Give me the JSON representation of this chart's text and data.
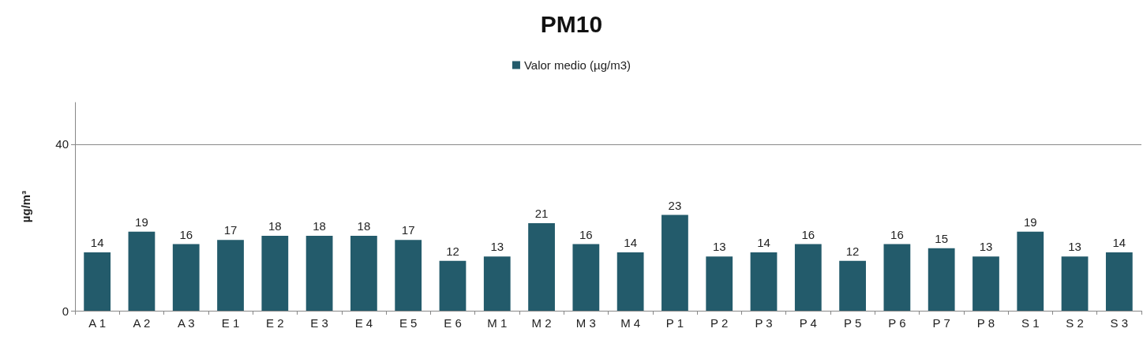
{
  "chart_data": {
    "type": "bar",
    "title": "PM10",
    "ylabel": "µg/m³",
    "categories": [
      "A 1",
      "A 2",
      "A 3",
      "E 1",
      "E 2",
      "E 3",
      "E 4",
      "E 5",
      "E 6",
      "M 1",
      "M 2",
      "M 3",
      "M 4",
      "P 1",
      "P 2",
      "P 3",
      "P 4",
      "P 5",
      "P 6",
      "P 7",
      "P 8",
      "S 1",
      "S 2",
      "S 3"
    ],
    "series": [
      {
        "name": "Valor medio (µg/m3)",
        "color": "#235b6b",
        "values": [
          14,
          19,
          16,
          17,
          18,
          18,
          18,
          17,
          12,
          13,
          21,
          16,
          14,
          23,
          13,
          14,
          16,
          12,
          16,
          15,
          13,
          19,
          13,
          14
        ]
      }
    ],
    "ylim": [
      0,
      50
    ],
    "yticks": [
      0,
      40
    ],
    "grid": "y",
    "legend": "top",
    "data_labels": true
  }
}
